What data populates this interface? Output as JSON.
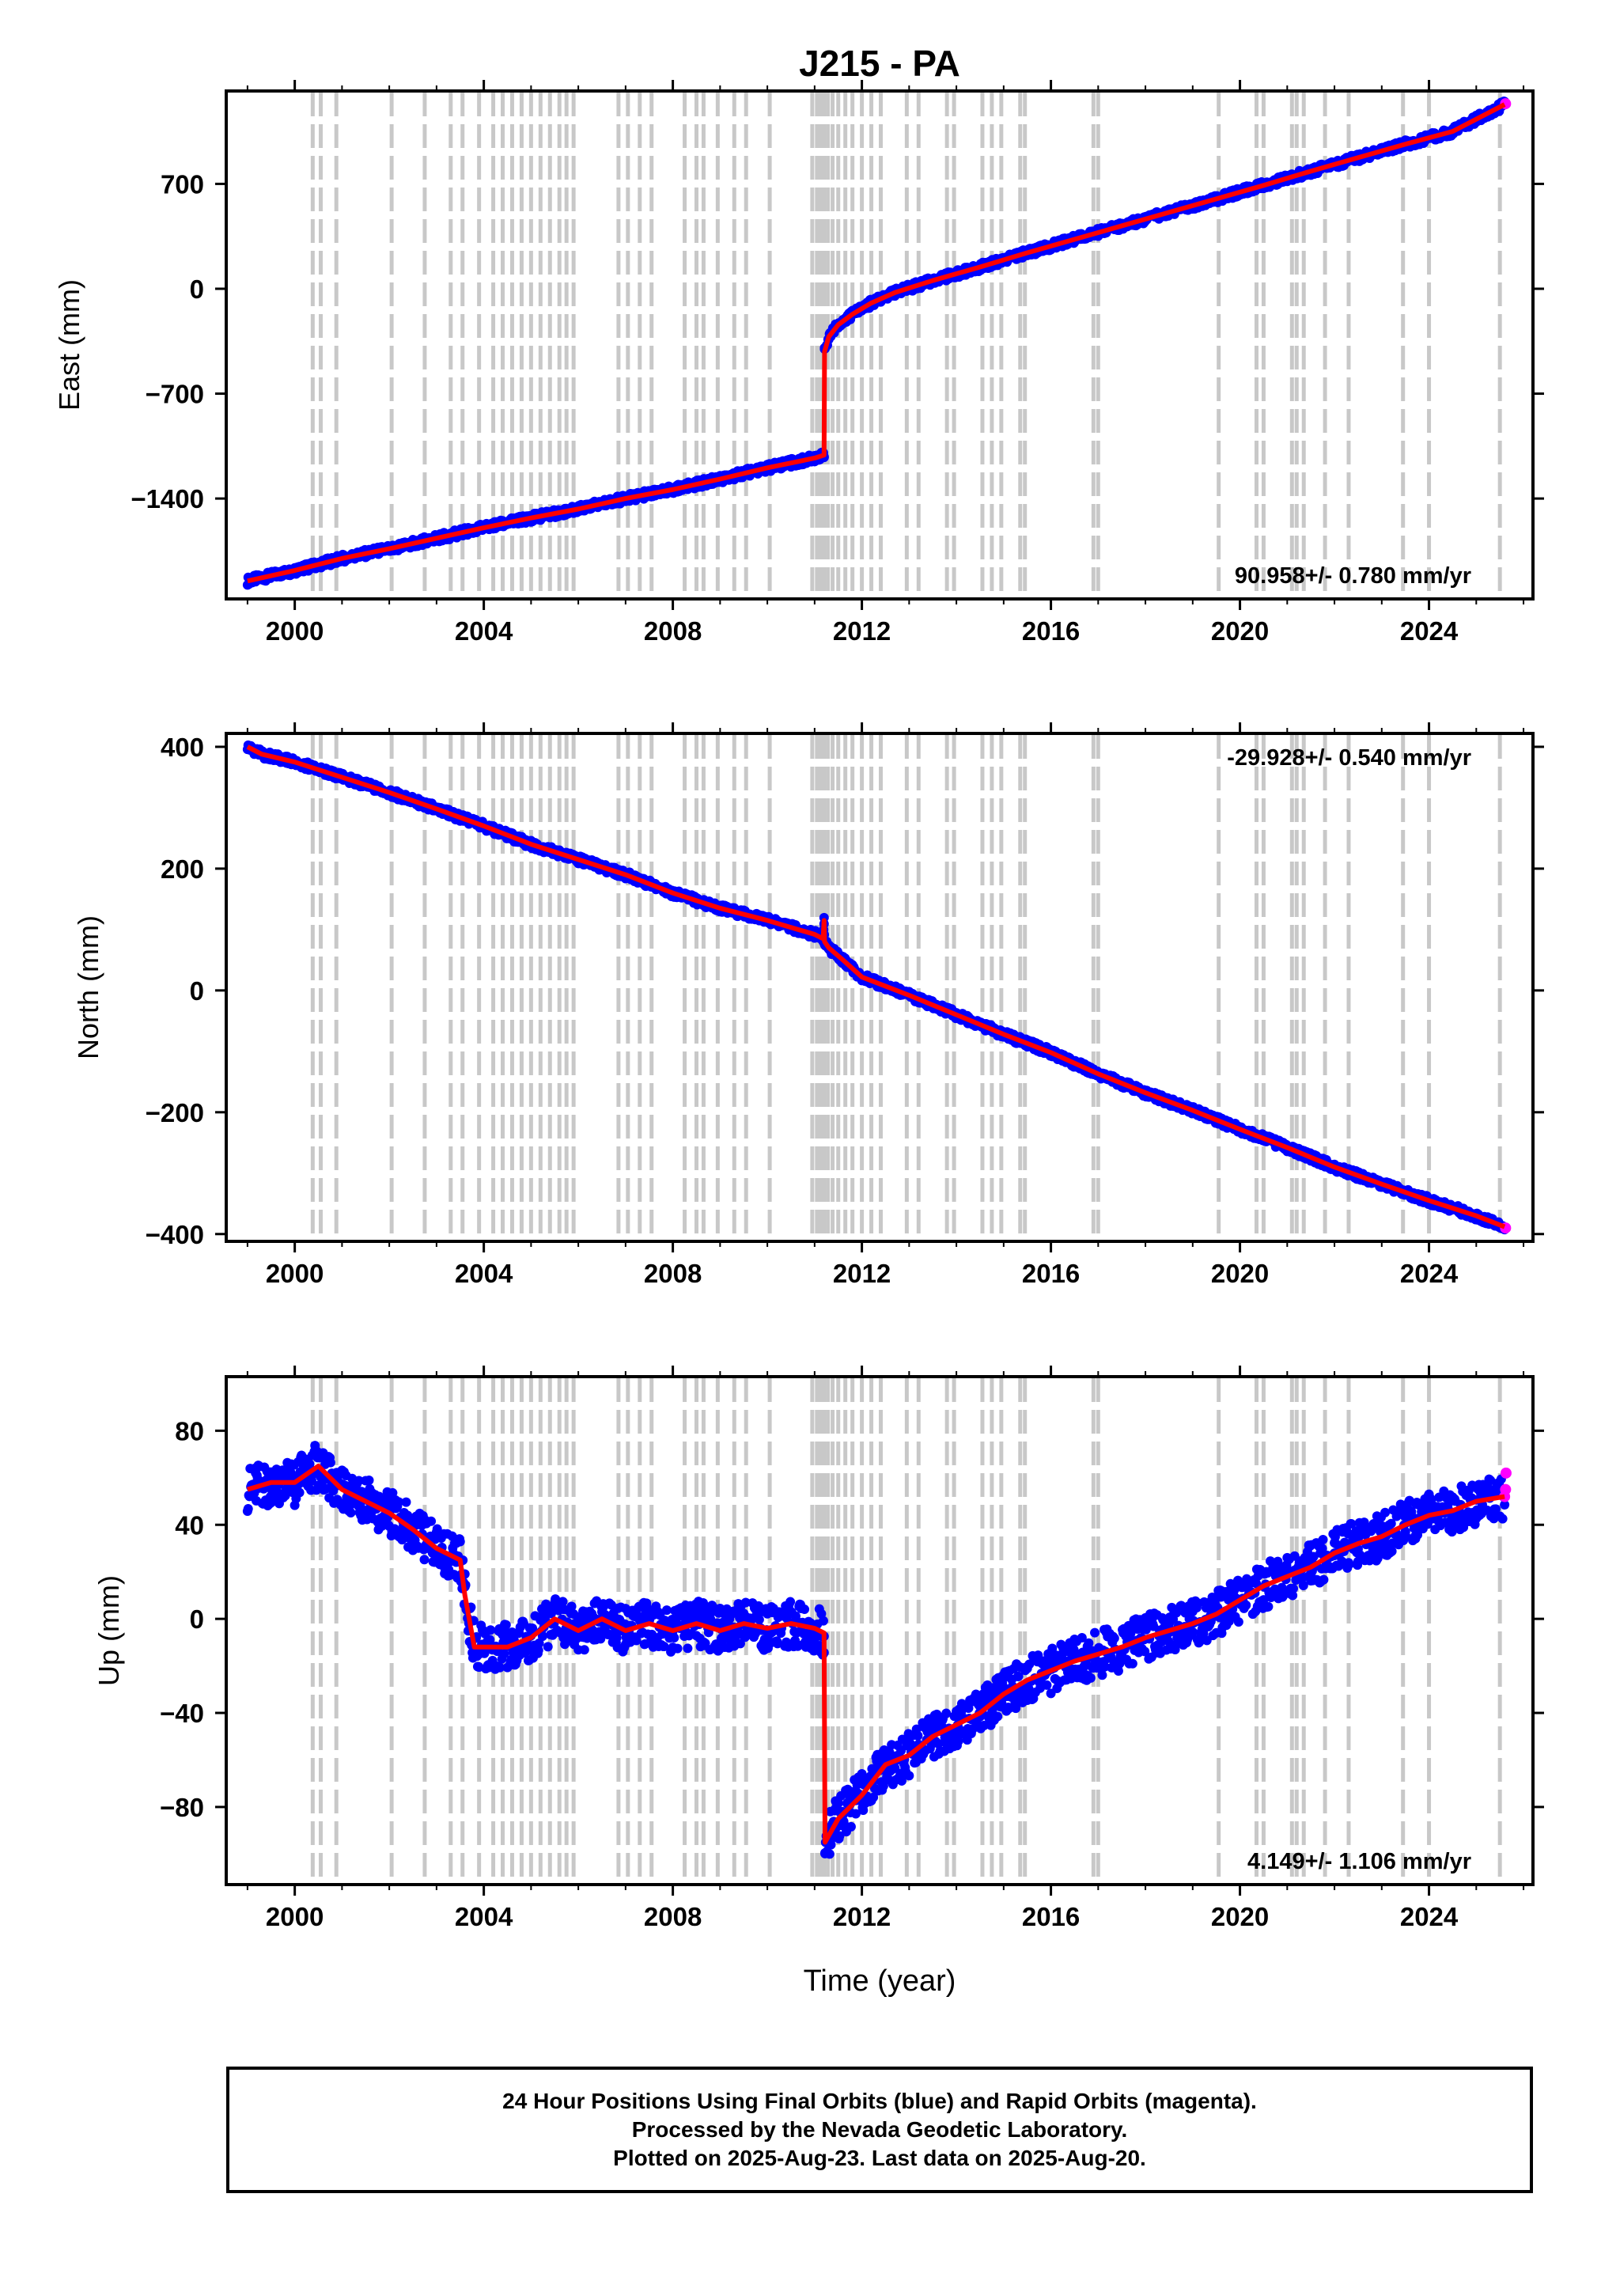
{
  "title": "J215 - PA",
  "x_label": "Time (year)",
  "colors": {
    "final_orbit_points": "#0000ff",
    "rapid_orbit_points": "#ff00ff",
    "model_line": "#ff0000",
    "event_lines": "#c8c8c8"
  },
  "event_lines_years": [
    2000.38,
    2000.55,
    2000.88,
    2002.05,
    2002.75,
    2003.3,
    2003.55,
    2003.9,
    2004.2,
    2004.4,
    2004.6,
    2004.8,
    2005.0,
    2005.2,
    2005.4,
    2005.6,
    2005.75,
    2005.9,
    2006.85,
    2007.05,
    2007.3,
    2007.55,
    2008.25,
    2008.5,
    2008.65,
    2008.95,
    2009.3,
    2009.55,
    2010.05,
    2010.95,
    2011.05,
    2011.12,
    2011.2,
    2011.28,
    2011.38,
    2011.5,
    2011.65,
    2011.8,
    2012.0,
    2012.2,
    2012.4,
    2012.95,
    2013.2,
    2013.8,
    2013.95,
    2014.55,
    2014.75,
    2014.95,
    2015.35,
    2015.45,
    2016.9,
    2017.0,
    2019.55,
    2020.35,
    2020.5,
    2021.1,
    2021.2,
    2021.35,
    2021.8,
    2022.3,
    2023.45,
    2024.0,
    2025.5
  ],
  "chart_data": [
    {
      "type": "scatter",
      "name": "east",
      "ylabel": "East (mm)",
      "xlim": [
        1998.55,
        2026.2
      ],
      "ylim": [
        -2070,
        1320
      ],
      "x_ticks": [
        2000,
        2004,
        2008,
        2012,
        2016,
        2020,
        2024
      ],
      "y_ticks": [
        -1400,
        -700,
        0,
        700
      ],
      "y_tick_labels": [
        "−1400",
        "−700",
        "0",
        "700"
      ],
      "velocity_label": "90.958+/- 0.780 mm/yr",
      "velocity_position": "bottom-right",
      "series": [
        {
          "color": "#0000ff",
          "x": [
            1999.0,
            2000.0,
            2001.0,
            2002.0,
            2003.0,
            2004.0,
            2005.0,
            2006.0,
            2007.0,
            2008.0,
            2009.0,
            2010.0,
            2011.0,
            2011.2,
            2011.21,
            2011.3,
            2011.5,
            2011.8,
            2012.2,
            2012.7,
            2013.5,
            2014.5,
            2015.5,
            2016.5,
            2017.5,
            2018.5,
            2019.5,
            2020.5,
            2021.5,
            2022.5,
            2023.5,
            2024.5,
            2025.6
          ],
          "y": [
            -1950,
            -1880,
            -1800,
            -1735,
            -1665,
            -1595,
            -1530,
            -1470,
            -1400,
            -1340,
            -1270,
            -1195,
            -1130,
            -1110,
            -420,
            -320,
            -240,
            -170,
            -95,
            -25,
            55,
            145,
            240,
            330,
            420,
            510,
            600,
            690,
            785,
            875,
            965,
            1050,
            1230
          ]
        }
      ],
      "rapid_orbit_points": {
        "x": [
          2025.62
        ],
        "y": [
          1235
        ]
      }
    },
    {
      "type": "scatter",
      "name": "north",
      "ylabel": "North (mm)",
      "xlim": [
        1998.55,
        2026.2
      ],
      "ylim": [
        -412,
        422
      ],
      "x_ticks": [
        2000,
        2004,
        2008,
        2012,
        2016,
        2020,
        2024
      ],
      "y_ticks": [
        -400,
        -200,
        0,
        200,
        400
      ],
      "y_tick_labels": [
        "−400",
        "−200",
        "0",
        "200",
        "400"
      ],
      "velocity_label": "-29.928+/- 0.540 mm/yr",
      "velocity_position": "top-right",
      "series": [
        {
          "color": "#0000ff",
          "x": [
            1999.0,
            1999.3,
            2000.0,
            2001.0,
            2002.0,
            2003.0,
            2004.0,
            2005.0,
            2006.0,
            2007.0,
            2008.0,
            2009.0,
            2010.0,
            2011.0,
            2011.18,
            2011.2,
            2011.21,
            2011.3,
            2011.6,
            2012.0,
            2013.0,
            2014.0,
            2015.0,
            2016.0,
            2017.0,
            2018.0,
            2019.0,
            2020.0,
            2021.0,
            2022.0,
            2023.0,
            2024.0,
            2025.0,
            2025.6
          ],
          "y": [
            400,
            388,
            375,
            350,
            325,
            298,
            270,
            240,
            215,
            190,
            160,
            135,
            115,
            92,
            85,
            115,
            80,
            70,
            50,
            22,
            -8,
            -40,
            -72,
            -102,
            -137,
            -168,
            -197,
            -228,
            -258,
            -290,
            -318,
            -345,
            -370,
            -388
          ]
        }
      ],
      "rapid_orbit_points": {
        "x": [
          2025.62
        ],
        "y": [
          -390
        ]
      }
    },
    {
      "type": "scatter",
      "name": "up",
      "ylabel": "Up (mm)",
      "xlim": [
        1998.55,
        2026.2
      ],
      "ylim": [
        -113,
        103
      ],
      "x_ticks": [
        2000,
        2004,
        2008,
        2012,
        2016,
        2020,
        2024
      ],
      "y_ticks": [
        -80,
        -40,
        0,
        40,
        80
      ],
      "y_tick_labels": [
        "−80",
        "−40",
        "0",
        "40",
        "80"
      ],
      "velocity_label": "4.149+/- 1.106 mm/yr",
      "velocity_position": "bottom-right",
      "series": [
        {
          "color": "#0000ff",
          "x": [
            1999.0,
            1999.5,
            2000.0,
            2000.5,
            2001.0,
            2001.5,
            2002.0,
            2002.5,
            2003.0,
            2003.5,
            2003.6,
            2003.8,
            2004.5,
            2005.0,
            2005.5,
            2006.0,
            2006.5,
            2007.0,
            2007.5,
            2008.0,
            2008.5,
            2009.0,
            2009.5,
            2010.0,
            2010.5,
            2011.0,
            2011.2,
            2011.22,
            2011.5,
            2012.0,
            2012.5,
            2013.0,
            2013.5,
            2014.0,
            2014.5,
            2015.0,
            2015.5,
            2016.0,
            2016.5,
            2017.0,
            2017.5,
            2018.0,
            2018.5,
            2019.0,
            2019.5,
            2020.0,
            2020.5,
            2021.0,
            2021.5,
            2022.0,
            2022.5,
            2023.0,
            2023.5,
            2024.0,
            2024.5,
            2025.0,
            2025.6
          ],
          "y": [
            55,
            58,
            58,
            65,
            55,
            50,
            45,
            38,
            30,
            25,
            10,
            -12,
            -12,
            -8,
            0,
            -5,
            0,
            -5,
            -2,
            -5,
            -2,
            -5,
            -2,
            -4,
            -2,
            -4,
            -6,
            -95,
            -85,
            -75,
            -62,
            -58,
            -50,
            -45,
            -40,
            -32,
            -26,
            -22,
            -18,
            -15,
            -12,
            -8,
            -5,
            -2,
            2,
            8,
            14,
            18,
            22,
            28,
            32,
            35,
            40,
            44,
            46,
            50,
            52
          ]
        }
      ],
      "rapid_orbit_points": {
        "x": [
          2025.6,
          2025.62,
          2025.63
        ],
        "y": [
          52,
          55,
          62
        ]
      }
    }
  ],
  "footer": {
    "line1": "24 Hour Positions Using Final Orbits (blue) and Rapid Orbits (magenta).",
    "line2": "Processed by the Nevada Geodetic Laboratory.",
    "line3": "Plotted on 2025-Aug-23. Last data on 2025-Aug-20."
  }
}
